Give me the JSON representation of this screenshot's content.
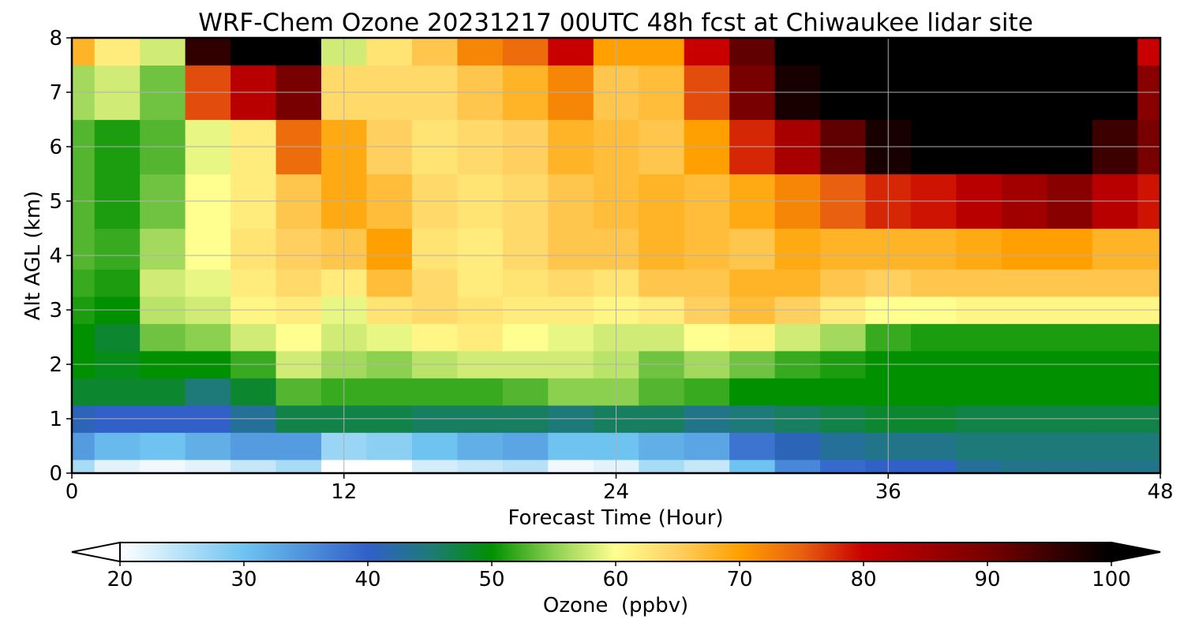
{
  "chart_data": {
    "type": "heatmap",
    "title": "WRF-Chem Ozone  20231217 00UTC 48h fcst at Chiwaukee lidar site",
    "xlabel": "Forecast Time (Hour)",
    "ylabel": "Alt AGL (km)",
    "xlim": [
      0,
      48
    ],
    "ylim": [
      0,
      8
    ],
    "x_ticks": [
      "0",
      "12",
      "24",
      "36",
      "48"
    ],
    "y_ticks": [
      "0",
      "1",
      "2",
      "3",
      "4",
      "5",
      "6",
      "7",
      "8"
    ],
    "grid": true,
    "colorbar": {
      "label": "Ozone  (ppbv)",
      "range": [
        20,
        100
      ],
      "ticks": [
        "20",
        "30",
        "40",
        "50",
        "60",
        "70",
        "80",
        "90",
        "100"
      ],
      "extend": "both",
      "stops": [
        {
          "value": 20,
          "color": "#ffffff"
        },
        {
          "value": 30,
          "color": "#6ec3f0"
        },
        {
          "value": 40,
          "color": "#3060c8"
        },
        {
          "value": 45,
          "color": "#1e7a78"
        },
        {
          "value": 50,
          "color": "#009000"
        },
        {
          "value": 55,
          "color": "#8cd050"
        },
        {
          "value": 60,
          "color": "#ffff90"
        },
        {
          "value": 65,
          "color": "#ffd060"
        },
        {
          "value": 70,
          "color": "#ffa000"
        },
        {
          "value": 75,
          "color": "#e86010"
        },
        {
          "value": 80,
          "color": "#c80000"
        },
        {
          "value": 90,
          "color": "#780000"
        },
        {
          "value": 100,
          "color": "#000000"
        }
      ]
    },
    "x": [
      0,
      2,
      4,
      6,
      8,
      10,
      12,
      14,
      16,
      18,
      20,
      22,
      24,
      26,
      28,
      30,
      32,
      34,
      36,
      38,
      40,
      42,
      44,
      46,
      48
    ],
    "y": [
      0,
      0.5,
      1,
      1.5,
      2,
      2.5,
      3,
      3.5,
      4,
      5,
      6,
      7,
      8
    ],
    "z": [
      [
        26,
        22,
        21,
        22,
        24,
        26,
        20,
        20,
        23,
        24,
        25,
        21,
        22,
        26,
        24,
        30,
        36,
        39,
        40,
        40,
        43,
        44,
        44,
        44,
        44
      ],
      [
        34,
        31,
        30,
        32,
        34,
        34,
        27,
        28,
        30,
        32,
        33,
        30,
        30,
        32,
        33,
        38,
        41,
        43,
        44,
        44,
        45,
        45,
        45,
        45,
        45
      ],
      [
        41,
        40,
        40,
        40,
        43,
        47,
        47,
        47,
        46,
        46,
        46,
        45,
        46,
        46,
        44,
        45,
        46,
        47,
        48,
        48,
        47,
        47,
        47,
        47,
        47
      ],
      [
        48,
        48,
        48,
        45,
        48,
        53,
        52,
        52,
        52,
        52,
        53,
        55,
        55,
        53,
        52,
        50,
        50,
        50,
        50,
        50,
        50,
        50,
        50,
        50,
        50
      ],
      [
        50,
        49,
        50,
        50,
        52,
        58,
        56,
        55,
        57,
        58,
        58,
        58,
        57,
        54,
        56,
        54,
        52,
        51,
        50,
        50,
        50,
        50,
        50,
        50,
        50
      ],
      [
        50,
        48,
        54,
        55,
        58,
        60,
        58,
        59,
        61,
        62,
        60,
        59,
        58,
        58,
        60,
        61,
        58,
        56,
        52,
        51,
        51,
        51,
        51,
        51,
        51
      ],
      [
        51,
        50,
        57,
        58,
        61,
        62,
        59,
        63,
        64,
        63,
        62,
        62,
        61,
        62,
        65,
        67,
        65,
        62,
        60,
        60,
        61,
        61,
        61,
        61,
        61
      ],
      [
        52,
        51,
        58,
        59,
        62,
        64,
        62,
        67,
        64,
        62,
        63,
        64,
        63,
        66,
        66,
        68,
        68,
        66,
        65,
        66,
        66,
        66,
        66,
        66,
        66
      ],
      [
        53,
        52,
        56,
        60,
        63,
        65,
        66,
        70,
        63,
        62,
        64,
        66,
        66,
        68,
        67,
        66,
        69,
        68,
        68,
        68,
        69,
        70,
        70,
        68,
        68
      ],
      [
        53,
        51,
        54,
        60,
        62,
        66,
        69,
        67,
        64,
        63,
        64,
        66,
        67,
        68,
        67,
        69,
        72,
        75,
        78,
        79,
        82,
        85,
        88,
        82,
        79
      ],
      [
        53,
        51,
        53,
        59,
        62,
        74,
        69,
        65,
        63,
        64,
        65,
        68,
        67,
        66,
        70,
        78,
        84,
        92,
        98,
        100,
        100,
        100,
        100,
        95,
        90
      ],
      [
        56,
        58,
        54,
        76,
        82,
        90,
        64,
        64,
        64,
        66,
        68,
        72,
        66,
        67,
        76,
        90,
        98,
        100,
        100,
        100,
        100,
        100,
        100,
        100,
        88
      ],
      [
        68,
        62,
        58,
        96,
        100,
        100,
        58,
        63,
        66,
        72,
        74,
        80,
        70,
        70,
        80,
        92,
        100,
        100,
        100,
        100,
        100,
        100,
        100,
        100,
        80
      ]
    ]
  }
}
